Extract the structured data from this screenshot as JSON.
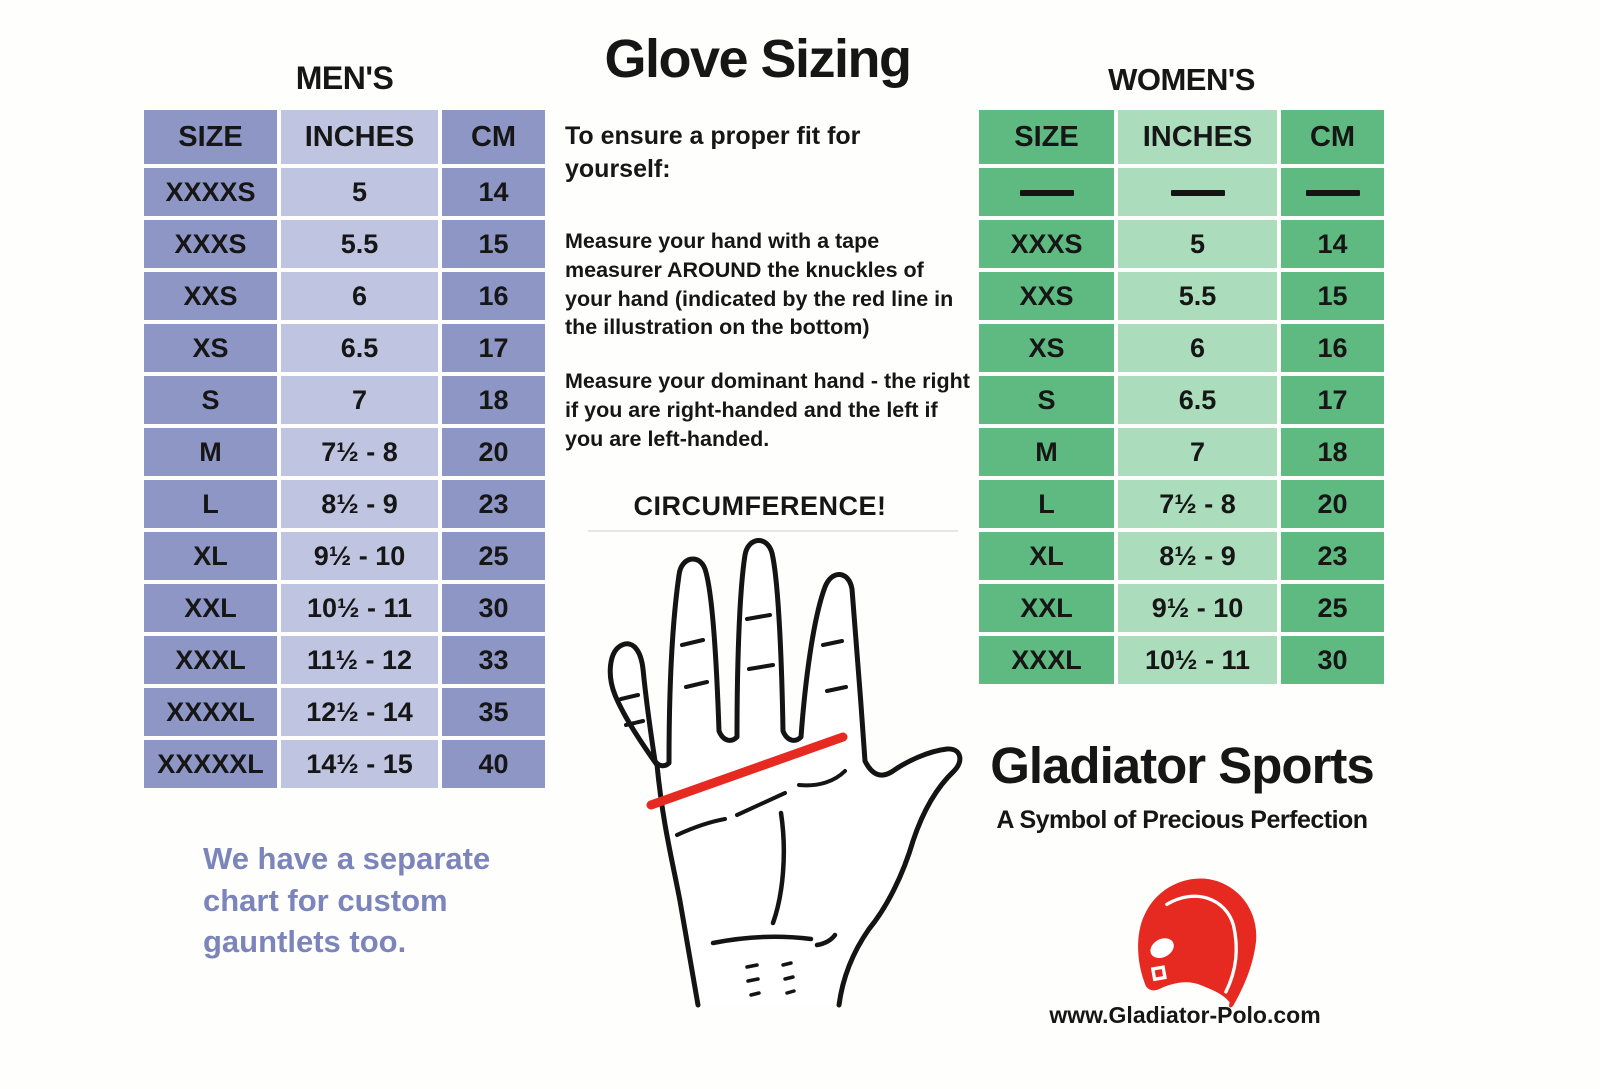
{
  "page_title": "Glove Sizing",
  "chart_data": [
    {
      "type": "table",
      "title": "MEN'S",
      "columns": [
        "SIZE",
        "INCHES",
        "CM"
      ],
      "rows": [
        [
          "XXXXS",
          "5",
          "14"
        ],
        [
          "XXXS",
          "5.5",
          "15"
        ],
        [
          "XXS",
          "6",
          "16"
        ],
        [
          "XS",
          "6.5",
          "17"
        ],
        [
          "S",
          "7",
          "18"
        ],
        [
          "M",
          "7½ - 8",
          "20"
        ],
        [
          "L",
          "8½ - 9",
          "23"
        ],
        [
          "XL",
          "9½ - 10",
          "25"
        ],
        [
          "XXL",
          "10½ - 11",
          "30"
        ],
        [
          "XXXL",
          "11½ - 12",
          "33"
        ],
        [
          "XXXXL",
          "12½ - 14",
          "35"
        ],
        [
          "XXXXXL",
          "14½ - 15",
          "40"
        ]
      ]
    },
    {
      "type": "table",
      "title": "WOMEN'S",
      "columns": [
        "SIZE",
        "INCHES",
        "CM"
      ],
      "rows": [
        [
          "——",
          "——",
          "——"
        ],
        [
          "XXXS",
          "5",
          "14"
        ],
        [
          "XXS",
          "5.5",
          "15"
        ],
        [
          "XS",
          "6",
          "16"
        ],
        [
          "S",
          "6.5",
          "17"
        ],
        [
          "M",
          "7",
          "18"
        ],
        [
          "L",
          "7½ - 8",
          "20"
        ],
        [
          "XL",
          "8½ - 9",
          "23"
        ],
        [
          "XXL",
          "9½ - 10",
          "25"
        ],
        [
          "XXXL",
          "10½ - 11",
          "30"
        ]
      ]
    }
  ],
  "center": {
    "title": "Glove Sizing",
    "intro": "To ensure a proper fit for yourself:",
    "para1": "Measure your hand with a tape measurer AROUND the knuckles of your hand (indicated by the red line in the illustration on the bottom)",
    "para2": "Measure your dominant hand - the right if you are right-handed and the left if you are left-handed.",
    "circumference_label": "CIRCUMFERENCE!",
    "hand_icon": "open-palm-hand-with-red-measurement-line"
  },
  "note": {
    "text": "We have a separate chart for custom gauntlets too."
  },
  "brand": {
    "name": "Gladiator Sports",
    "tagline": "A Symbol of Precious Perfection",
    "website": "www.Gladiator-Polo.com",
    "logo_icon": "red-gladiator-helmet"
  },
  "colors": {
    "mens_medium": "#8e96c6",
    "mens_light": "#bfc4e0",
    "womens_medium": "#5fba81",
    "womens_light": "#abdcbb",
    "note_text": "#7b85bb",
    "accent_red": "#e62a21",
    "text_color": "#161616",
    "page_bg": "#fefefc"
  }
}
